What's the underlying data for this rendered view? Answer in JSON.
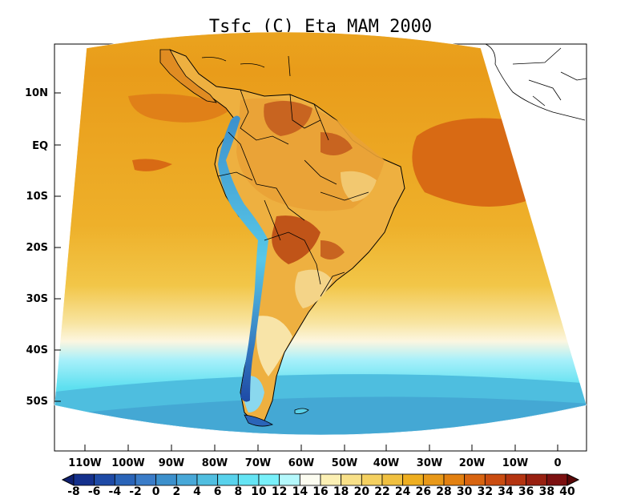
{
  "title": "Tsfc (C) Eta MAM 2000",
  "lat_labels": [
    "10N",
    "EQ",
    "10S",
    "20S",
    "30S",
    "40S",
    "50S"
  ],
  "lon_labels": [
    "110W",
    "100W",
    "90W",
    "80W",
    "70W",
    "60W",
    "50W",
    "40W",
    "30W",
    "20W",
    "10W",
    "0"
  ],
  "colorbar": {
    "labels": [
      "-8",
      "-6",
      "-4",
      "-2",
      "0",
      "2",
      "4",
      "6",
      "8",
      "10",
      "12",
      "14",
      "16",
      "18",
      "20",
      "22",
      "24",
      "26",
      "28",
      "30",
      "32",
      "34",
      "36",
      "38",
      "40"
    ],
    "colors": [
      "#0f2070",
      "#14308c",
      "#1e4aa6",
      "#2a64b8",
      "#3a7cc8",
      "#3c90cc",
      "#48a8d8",
      "#50bee0",
      "#58d2ec",
      "#64e4f4",
      "#78f0fa",
      "#b4f8fc",
      "#fcfcf0",
      "#fcf0b4",
      "#f8e088",
      "#f4d060",
      "#f0c040",
      "#eeae20",
      "#e89818",
      "#e28010",
      "#d86410",
      "#ca4c10",
      "#b43410",
      "#982010",
      "#7c1010",
      "#5a0808"
    ]
  }
}
